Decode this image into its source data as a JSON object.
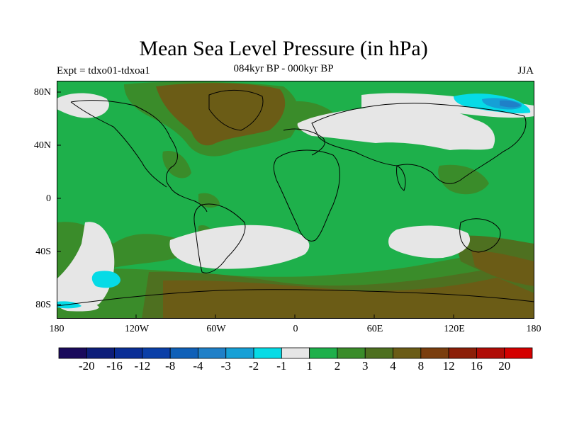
{
  "title": "Mean Sea Level Pressure (in hPa)",
  "subtitle_left": "Expt = tdxo01-tdxoa1",
  "subtitle_center": "084kyr BP - 000kyr BP",
  "subtitle_right": "JJA",
  "lat_labels": [
    "80N",
    "40N",
    "0",
    "40S",
    "80S"
  ],
  "lon_labels": [
    "180",
    "120W",
    "60W",
    "0",
    "60E",
    "120E",
    "180"
  ],
  "colorbar": {
    "colors": [
      "#1a0a5c",
      "#0d1e7a",
      "#0a2e96",
      "#0a3fa8",
      "#0f60b8",
      "#1f80c8",
      "#16a0d6",
      "#06dbe6",
      "#e6e6e6",
      "#1eb04b",
      "#3a8c2a",
      "#4e7020",
      "#6b5c16",
      "#7a3e0e",
      "#8c1f08",
      "#b00c06",
      "#d40000"
    ],
    "labels": [
      "-20",
      "-16",
      "-12",
      "-8",
      "-4",
      "-3",
      "-2",
      "-1",
      "1",
      "2",
      "3",
      "4",
      "8",
      "12",
      "16",
      "20"
    ]
  },
  "colors": {
    "green": "#1eb04b",
    "olive": "#3a8c2a",
    "darkolive": "#4e7020",
    "brown": "#6b5c16",
    "gray": "#e6e6e6",
    "cyan": "#06dbe6",
    "lightblue": "#16a0d6",
    "blue": "#1f80c8"
  }
}
